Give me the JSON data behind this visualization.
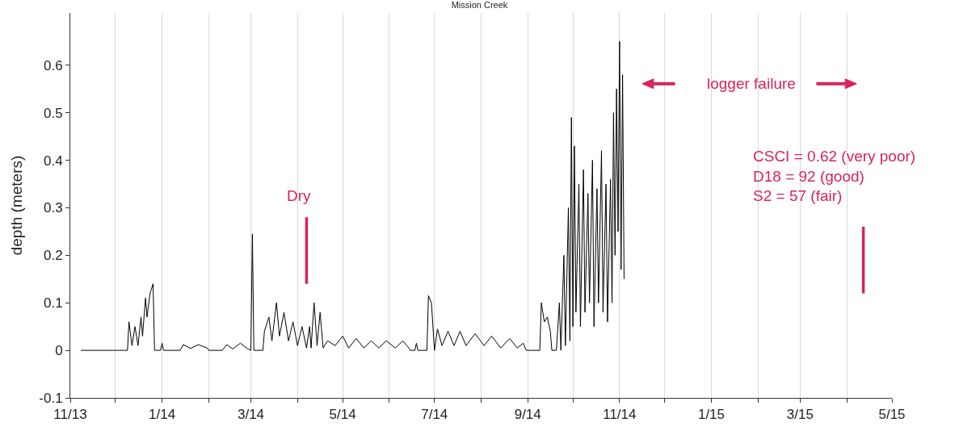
{
  "chart_data": {
    "type": "line",
    "title": "Mission Creek",
    "ylabel": "depth (meters)",
    "xlim": [
      "2013-11-01",
      "2015-05-01"
    ],
    "ylim": [
      -0.1,
      0.71
    ],
    "xticks": [
      {
        "value": "2013-11-01",
        "label": "11/13"
      },
      {
        "value": "2013-12-01",
        "label": null
      },
      {
        "value": "2014-01-01",
        "label": "1/14"
      },
      {
        "value": "2014-02-01",
        "label": null
      },
      {
        "value": "2014-03-01",
        "label": "3/14"
      },
      {
        "value": "2014-04-01",
        "label": null
      },
      {
        "value": "2014-05-01",
        "label": "5/14"
      },
      {
        "value": "2014-06-01",
        "label": null
      },
      {
        "value": "2014-07-01",
        "label": "7/14"
      },
      {
        "value": "2014-08-01",
        "label": null
      },
      {
        "value": "2014-09-01",
        "label": "9/14"
      },
      {
        "value": "2014-10-01",
        "label": null
      },
      {
        "value": "2014-11-01",
        "label": "11/14"
      },
      {
        "value": "2014-12-01",
        "label": null
      },
      {
        "value": "2015-01-01",
        "label": "1/15"
      },
      {
        "value": "2015-02-01",
        "label": null
      },
      {
        "value": "2015-03-01",
        "label": "3/15"
      },
      {
        "value": "2015-04-01",
        "label": null
      },
      {
        "value": "2015-05-01",
        "label": "5/15"
      }
    ],
    "yticks": [
      -0.1,
      0,
      0.1,
      0.2,
      0.3,
      0.4,
      0.5,
      0.6
    ],
    "grid": "x",
    "marker": "none",
    "line_style": "solid",
    "annotations": [
      "Dry",
      "logger failure",
      "CSCI = 0.62 (very poor)\nD18 = 92 (good)\nS2 = 57 (fair)"
    ],
    "series": [
      {
        "color": "#000000",
        "x": [
          "2013-11-08",
          "2013-12-09",
          "2013-12-10",
          "2013-12-12",
          "2013-12-14",
          "2013-12-16",
          "2013-12-18",
          "2013-12-19",
          "2013-12-21",
          "2013-12-22",
          "2013-12-24",
          "2013-12-26",
          "2013-12-27",
          "2013-12-31",
          "2014-01-01",
          "2014-01-02",
          "2014-01-13",
          "2014-01-15",
          "2014-01-20",
          "2014-01-25",
          "2014-01-31",
          "2014-02-01",
          "2014-02-10",
          "2014-02-13",
          "2014-02-17",
          "2014-02-22",
          "2014-02-27",
          "2014-03-01",
          "2014-03-02",
          "2014-03-03",
          "2014-03-09",
          "2014-03-10",
          "2014-03-13",
          "2014-03-15",
          "2014-03-18",
          "2014-03-20",
          "2014-03-23",
          "2014-03-26",
          "2014-03-29",
          "2014-04-01",
          "2014-04-04",
          "2014-04-07",
          "2014-04-09",
          "2014-04-10",
          "2014-04-12",
          "2014-04-14",
          "2014-04-16",
          "2014-04-18",
          "2014-04-21",
          "2014-04-26",
          "2014-05-01",
          "2014-05-05",
          "2014-05-10",
          "2014-05-15",
          "2014-05-20",
          "2014-05-25",
          "2014-05-30",
          "2014-06-05",
          "2014-06-10",
          "2014-06-14",
          "2014-06-15",
          "2014-06-18",
          "2014-06-19",
          "2014-06-20",
          "2014-06-26",
          "2014-06-27",
          "2014-06-29",
          "2014-07-01",
          "2014-07-03",
          "2014-07-06",
          "2014-07-10",
          "2014-07-14",
          "2014-07-18",
          "2014-07-22",
          "2014-07-28",
          "2014-08-03",
          "2014-08-08",
          "2014-08-14",
          "2014-08-20",
          "2014-08-25",
          "2014-08-29",
          "2014-08-31",
          "2014-09-09",
          "2014-09-10",
          "2014-09-12",
          "2014-09-14",
          "2014-09-16",
          "2014-09-17",
          "2014-09-20",
          "2014-09-22",
          "2014-09-23",
          "2014-09-25",
          "2014-09-26",
          "2014-09-28",
          "2014-09-29",
          "2014-09-30",
          "2014-10-01",
          "2014-10-02",
          "2014-10-03",
          "2014-10-05",
          "2014-10-06",
          "2014-10-08",
          "2014-10-09",
          "2014-10-11",
          "2014-10-12",
          "2014-10-14",
          "2014-10-15",
          "2014-10-17",
          "2014-10-18",
          "2014-10-20",
          "2014-10-21",
          "2014-10-23",
          "2014-10-24",
          "2014-10-26",
          "2014-10-27",
          "2014-10-28",
          "2014-10-29",
          "2014-10-30",
          "2014-10-31",
          "2014-11-01",
          "2014-11-02",
          "2014-11-03",
          "2014-11-04"
        ],
        "values": [
          0,
          0,
          0.06,
          0.01,
          0.05,
          0.01,
          0.07,
          0.03,
          0.11,
          0.07,
          0.12,
          0.14,
          0,
          0,
          0.015,
          0,
          0,
          0.012,
          0.004,
          0.012,
          0.005,
          0,
          0,
          0.012,
          0.003,
          0.015,
          0.003,
          0,
          0.245,
          0,
          0,
          0.04,
          0.07,
          0.02,
          0.1,
          0.03,
          0.08,
          0.02,
          0.06,
          0.01,
          0.05,
          0.005,
          0.05,
          0.005,
          0.1,
          0.01,
          0.08,
          0.005,
          0.02,
          0.01,
          0.03,
          0.005,
          0.025,
          0.005,
          0.02,
          0.005,
          0.02,
          0.005,
          0.02,
          0.005,
          0,
          0,
          0.015,
          0,
          0,
          0.115,
          0.1,
          0,
          0.045,
          0.01,
          0.04,
          0.01,
          0.04,
          0.01,
          0.035,
          0.01,
          0.03,
          0.005,
          0.025,
          0.005,
          0.015,
          0,
          0,
          0.1,
          0.06,
          0.07,
          0.04,
          0,
          0,
          0.1,
          0,
          0.2,
          0.01,
          0.3,
          0.02,
          0.49,
          0.05,
          0.43,
          0.08,
          0.35,
          0.05,
          0.38,
          0.08,
          0.33,
          0.1,
          0.4,
          0.05,
          0.34,
          0.1,
          0.42,
          0.08,
          0.35,
          0.06,
          0.36,
          0.1,
          0.5,
          0.2,
          0.55,
          0.25,
          0.65,
          0.17,
          0.58,
          0.15
        ]
      },
      {
        "color": "#d6245a",
        "x": [
          "2014-04-07",
          "2014-04-07"
        ],
        "values": [
          0.14,
          0.28
        ]
      },
      {
        "color": "#d6245a",
        "x": [
          "2015-04-12",
          "2015-04-12"
        ],
        "values": [
          0.12,
          0.26
        ]
      }
    ]
  }
}
